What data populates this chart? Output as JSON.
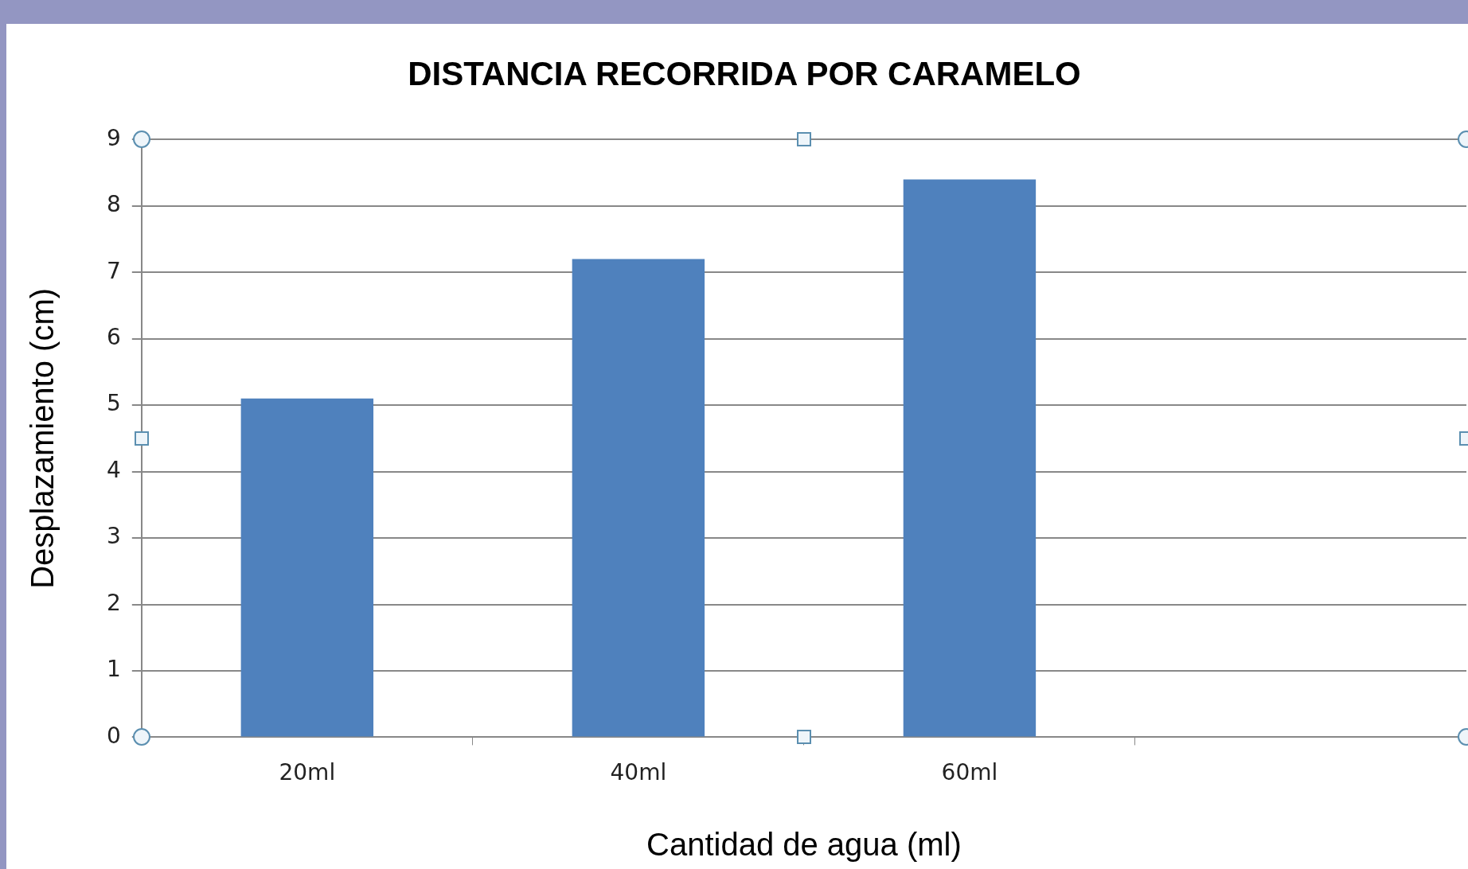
{
  "chart_data": {
    "type": "bar",
    "title": "DISTANCIA RECORRIDA POR CARAMELO",
    "xlabel": "Cantidad de agua (ml)",
    "ylabel": "Desplazamiento (cm)",
    "categories": [
      "20ml",
      "40ml",
      "60ml",
      null
    ],
    "values": [
      5.1,
      7.2,
      8.4,
      null
    ],
    "color": "#4f81bd",
    "ylim": [
      0,
      9
    ],
    "yticks": [
      0,
      1,
      2,
      3,
      4,
      5,
      6,
      7,
      8,
      9
    ],
    "grid": "y"
  }
}
